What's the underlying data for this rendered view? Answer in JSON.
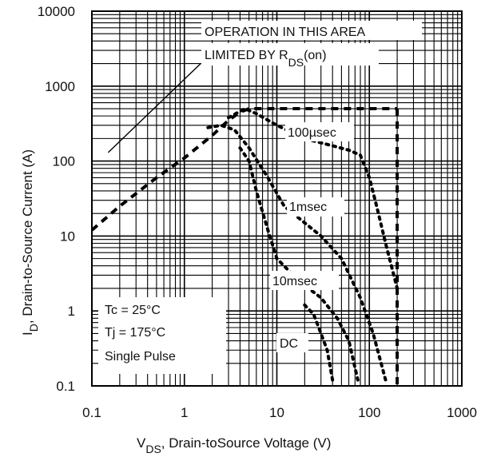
{
  "chart_data": {
    "type": "line",
    "title": "",
    "xlabel": {
      "main": "V",
      "sub": "DS",
      "rest": ",  Drain-toSource Voltage (V)"
    },
    "ylabel": {
      "main": "I",
      "sub": "D",
      "rest": ",  Drain-to-Source Current (A)"
    },
    "x_scale": "log",
    "y_scale": "log",
    "xlim": [
      0.1,
      1000
    ],
    "ylim": [
      0.1,
      10000
    ],
    "grid": true,
    "x_ticks": [
      {
        "value": 0.1,
        "label": "0.1"
      },
      {
        "value": 1,
        "label": "1"
      },
      {
        "value": 10,
        "label": "10"
      },
      {
        "value": 100,
        "label": "100"
      },
      {
        "value": 1000,
        "label": "1000"
      }
    ],
    "y_ticks": [
      {
        "value": 0.1,
        "label": "0.1"
      },
      {
        "value": 1,
        "label": "1"
      },
      {
        "value": 10,
        "label": "10"
      },
      {
        "value": 100,
        "label": "100"
      },
      {
        "value": 1000,
        "label": "1000"
      },
      {
        "value": 10000,
        "label": "10000"
      }
    ],
    "series": [
      {
        "name": "",
        "style": "dashed",
        "points": [
          [
            0.1,
            12
          ],
          [
            0.2,
            25
          ],
          [
            0.5,
            60
          ],
          [
            1,
            110
          ],
          [
            2,
            220
          ],
          [
            3,
            350
          ],
          [
            4,
            450
          ],
          [
            5,
            500
          ],
          [
            200,
            500
          ]
        ]
      },
      {
        "name": "100µsec",
        "style": "dotted",
        "points": [
          [
            3,
            380
          ],
          [
            4.5,
            500
          ],
          [
            6,
            430
          ],
          [
            10,
            300
          ],
          [
            20,
            200
          ],
          [
            40,
            160
          ],
          [
            60,
            140
          ],
          [
            80,
            120
          ],
          [
            100,
            60
          ],
          [
            120,
            25
          ],
          [
            150,
            8
          ],
          [
            200,
            2
          ]
        ]
      },
      {
        "name": "1msec",
        "style": "dotted",
        "points": [
          [
            1.8,
            280
          ],
          [
            2.5,
            300
          ],
          [
            3.5,
            260
          ],
          [
            5,
            150
          ],
          [
            8,
            60
          ],
          [
            12,
            25
          ],
          [
            20,
            15
          ],
          [
            30,
            10
          ],
          [
            50,
            5
          ],
          [
            80,
            1.5
          ],
          [
            110,
            0.5
          ],
          [
            150,
            0.12
          ]
        ]
      },
      {
        "name": "10msec",
        "style": "dotted",
        "points": [
          [
            4,
            150
          ],
          [
            5,
            100
          ],
          [
            6,
            40
          ],
          [
            8,
            12
          ],
          [
            10,
            5
          ],
          [
            15,
            3
          ],
          [
            20,
            2.2
          ],
          [
            30,
            1.5
          ],
          [
            45,
            0.8
          ],
          [
            60,
            0.4
          ],
          [
            75,
            0.12
          ]
        ]
      },
      {
        "name": "DC",
        "style": "dotted",
        "points": [
          [
            20,
            1.2
          ],
          [
            25,
            0.9
          ],
          [
            30,
            0.5
          ],
          [
            35,
            0.3
          ],
          [
            40,
            0.12
          ]
        ]
      },
      {
        "name": "",
        "style": "solid",
        "points": [
          [
            0.15,
            130
          ],
          [
            1.5,
            2000
          ]
        ]
      },
      {
        "name": "",
        "style": "dashed",
        "points": [
          [
            200,
            500
          ],
          [
            200,
            0.1
          ]
        ]
      }
    ],
    "annotations": [
      {
        "lines": [
          "OPERATION IN THIS AREA",
          "LIMITED BY R",
          "DS",
          "(on)"
        ]
      },
      {
        "label": "100µsec"
      },
      {
        "label": "1msec"
      },
      {
        "label": "10msec"
      },
      {
        "label": "DC"
      },
      {
        "lines": [
          "Tc = 25°C",
          "Tj = 175°C",
          "Single Pulse"
        ]
      }
    ]
  }
}
